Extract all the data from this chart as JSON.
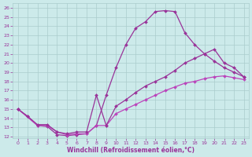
{
  "xlabel": "Windchill (Refroidissement éolien,°C)",
  "xlim": [
    -0.5,
    23.5
  ],
  "ylim": [
    11.8,
    26.5
  ],
  "xticks": [
    0,
    1,
    2,
    3,
    4,
    5,
    6,
    7,
    8,
    9,
    10,
    11,
    12,
    13,
    14,
    15,
    16,
    17,
    18,
    19,
    20,
    21,
    22,
    23
  ],
  "yticks": [
    12,
    13,
    14,
    15,
    16,
    17,
    18,
    19,
    20,
    21,
    22,
    23,
    24,
    25,
    26
  ],
  "bg_color": "#cceaea",
  "grid_color": "#aacccc",
  "color_dark": "#993399",
  "color_light": "#bb44bb",
  "curve1_x": [
    0,
    1,
    2,
    3,
    4,
    5,
    6,
    7,
    8,
    9,
    10,
    11,
    12,
    13,
    14,
    15,
    16,
    17,
    18,
    19,
    20,
    21,
    22,
    23
  ],
  "curve1_y": [
    15.0,
    14.2,
    13.2,
    13.1,
    12.2,
    12.1,
    12.2,
    12.3,
    13.2,
    16.5,
    19.5,
    22.0,
    23.8,
    24.5,
    25.6,
    25.7,
    25.6,
    23.3,
    22.0,
    21.0,
    20.2,
    19.5,
    19.0,
    18.5
  ],
  "curve2_x": [
    0,
    2,
    3,
    4,
    5,
    6,
    7,
    8,
    9,
    10,
    11,
    12,
    13,
    14,
    15,
    16,
    17,
    18,
    19,
    20,
    21,
    22,
    23
  ],
  "curve2_y": [
    15.0,
    13.2,
    13.2,
    12.5,
    12.2,
    12.3,
    12.3,
    13.2,
    13.2,
    14.5,
    15.0,
    15.5,
    16.0,
    16.5,
    17.0,
    17.4,
    17.8,
    18.0,
    18.3,
    18.5,
    18.6,
    18.4,
    18.2
  ],
  "curve3_x": [
    0,
    1,
    2,
    3,
    4,
    5,
    6,
    7,
    8,
    9,
    10,
    11,
    12,
    13,
    14,
    15,
    16,
    17,
    18,
    19,
    20,
    21,
    22,
    23
  ],
  "curve3_y": [
    15.0,
    14.2,
    13.3,
    13.3,
    12.5,
    12.3,
    12.5,
    12.5,
    16.5,
    13.2,
    15.3,
    16.0,
    16.8,
    17.5,
    18.0,
    18.5,
    19.2,
    20.0,
    20.5,
    21.0,
    21.5,
    20.0,
    19.5,
    18.5
  ]
}
